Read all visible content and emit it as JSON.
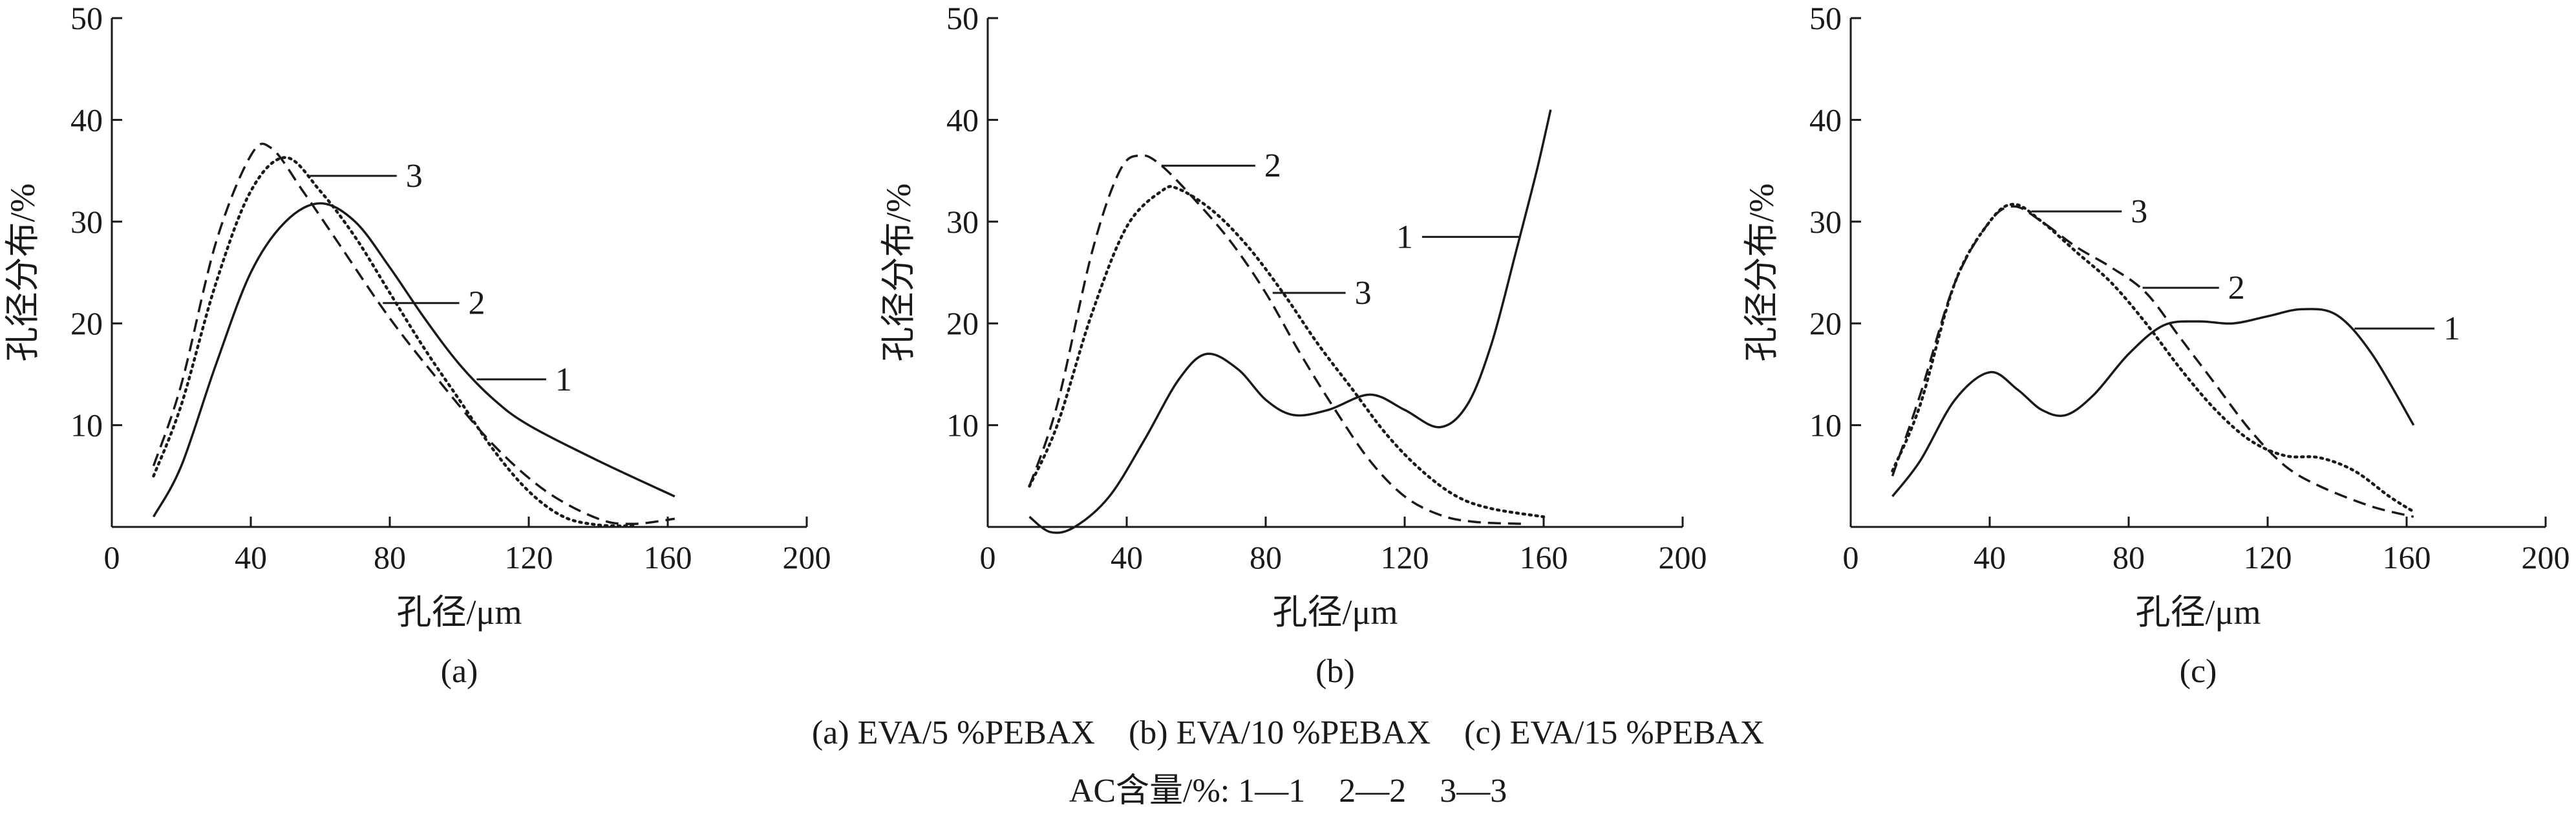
{
  "chart_data": [
    {
      "type": "line",
      "panel_label": "(a)",
      "xlabel": "孔径/μm",
      "ylabel": "孔径分布/%",
      "xlim": [
        0,
        200
      ],
      "ylim": [
        0,
        50
      ],
      "xticks": [
        "0",
        "40",
        "80",
        "120",
        "160",
        "200"
      ],
      "yticks": [
        "10",
        "20",
        "30",
        "40",
        "50"
      ],
      "grid": false,
      "series": [
        {
          "name": "1",
          "style": "solid",
          "points": [
            [
              12,
              1
            ],
            [
              20,
              6
            ],
            [
              30,
              16
            ],
            [
              40,
              25
            ],
            [
              50,
              30
            ],
            [
              60,
              31.8
            ],
            [
              70,
              30
            ],
            [
              80,
              25.5
            ],
            [
              90,
              20.5
            ],
            [
              100,
              16
            ],
            [
              110,
              12.5
            ],
            [
              120,
              10
            ],
            [
              140,
              6.5
            ],
            [
              162,
              3
            ]
          ]
        },
        {
          "name": "2",
          "style": "dashed",
          "points": [
            [
              12,
              6
            ],
            [
              20,
              14
            ],
            [
              30,
              28
            ],
            [
              40,
              36.5
            ],
            [
              46,
              37.2
            ],
            [
              55,
              33
            ],
            [
              65,
              28
            ],
            [
              80,
              20.5
            ],
            [
              95,
              14
            ],
            [
              110,
              8
            ],
            [
              125,
              3.5
            ],
            [
              140,
              0.8
            ],
            [
              150,
              0.3
            ],
            [
              162,
              0.8
            ]
          ]
        },
        {
          "name": "3",
          "style": "dotted",
          "points": [
            [
              12,
              5
            ],
            [
              20,
              12
            ],
            [
              30,
              24
            ],
            [
              40,
              33
            ],
            [
              50,
              36.3
            ],
            [
              60,
              33
            ],
            [
              70,
              28.5
            ],
            [
              80,
              23
            ],
            [
              90,
              17.5
            ],
            [
              100,
              12.5
            ],
            [
              110,
              7.5
            ],
            [
              120,
              3.5
            ],
            [
              130,
              1
            ],
            [
              140,
              0.2
            ],
            [
              150,
              0.1
            ]
          ]
        }
      ],
      "annotations": [
        {
          "text": "1",
          "series": "1",
          "at": [
            105,
            14.5
          ],
          "label_at": [
            125,
            14.5
          ]
        },
        {
          "text": "2",
          "series": "2",
          "at": [
            78,
            22
          ],
          "label_at": [
            100,
            22
          ]
        },
        {
          "text": "3",
          "series": "3",
          "at": [
            57,
            34.5
          ],
          "label_at": [
            82,
            34.5
          ]
        }
      ]
    },
    {
      "type": "line",
      "panel_label": "(b)",
      "xlabel": "孔径/μm",
      "ylabel": "孔径分布/%",
      "xlim": [
        0,
        200
      ],
      "ylim": [
        0,
        50
      ],
      "xticks": [
        "0",
        "40",
        "80",
        "120",
        "160",
        "200"
      ],
      "yticks": [
        "10",
        "20",
        "30",
        "40",
        "50"
      ],
      "grid": false,
      "series": [
        {
          "name": "1",
          "style": "solid",
          "points": [
            [
              12,
              1
            ],
            [
              18,
              -0.5
            ],
            [
              25,
              0
            ],
            [
              35,
              3
            ],
            [
              45,
              8.5
            ],
            [
              55,
              14.5
            ],
            [
              63,
              17
            ],
            [
              72,
              15.5
            ],
            [
              80,
              12.5
            ],
            [
              88,
              11
            ],
            [
              98,
              11.5
            ],
            [
              110,
              13
            ],
            [
              120,
              11.5
            ],
            [
              130,
              9.8
            ],
            [
              138,
              12
            ],
            [
              145,
              18
            ],
            [
              152,
              27
            ],
            [
              158,
              35
            ],
            [
              162,
              41
            ]
          ]
        },
        {
          "name": "2",
          "style": "dashed",
          "points": [
            [
              12,
              4
            ],
            [
              20,
              12
            ],
            [
              30,
              27
            ],
            [
              38,
              35
            ],
            [
              44,
              36.5
            ],
            [
              50,
              35.5
            ],
            [
              60,
              32
            ],
            [
              70,
              28
            ],
            [
              80,
              23
            ],
            [
              90,
              17
            ],
            [
              100,
              11.5
            ],
            [
              110,
              6.5
            ],
            [
              120,
              3
            ],
            [
              130,
              1.2
            ],
            [
              140,
              0.5
            ],
            [
              155,
              0.3
            ]
          ]
        },
        {
          "name": "3",
          "style": "dotted",
          "points": [
            [
              12,
              4
            ],
            [
              20,
              10
            ],
            [
              30,
              21
            ],
            [
              40,
              29.5
            ],
            [
              50,
              33
            ],
            [
              55,
              33.2
            ],
            [
              65,
              31
            ],
            [
              75,
              27.5
            ],
            [
              85,
              23
            ],
            [
              95,
              18
            ],
            [
              105,
              13.5
            ],
            [
              115,
              9
            ],
            [
              125,
              5.5
            ],
            [
              135,
              3
            ],
            [
              145,
              1.8
            ],
            [
              160,
              1
            ]
          ]
        }
      ],
      "annotations": [
        {
          "text": "1",
          "series": "1",
          "at": [
            153,
            28.5
          ],
          "label_at": [
            125,
            28.5
          ]
        },
        {
          "text": "2",
          "series": "2",
          "at": [
            50,
            35.5
          ],
          "label_at": [
            77,
            35.5
          ]
        },
        {
          "text": "3",
          "series": "3",
          "at": [
            82,
            23
          ],
          "label_at": [
            103,
            23
          ]
        }
      ]
    },
    {
      "type": "line",
      "panel_label": "(c)",
      "xlabel": "孔径/μm",
      "ylabel": "孔径分布/%",
      "xlim": [
        0,
        200
      ],
      "ylim": [
        0,
        50
      ],
      "xticks": [
        "0",
        "40",
        "80",
        "120",
        "160",
        "200"
      ],
      "yticks": [
        "10",
        "20",
        "30",
        "40",
        "50"
      ],
      "grid": false,
      "series": [
        {
          "name": "1",
          "style": "solid",
          "points": [
            [
              12,
              3
            ],
            [
              20,
              6.5
            ],
            [
              30,
              12.5
            ],
            [
              40,
              15.2
            ],
            [
              48,
              13.5
            ],
            [
              55,
              11.5
            ],
            [
              62,
              11
            ],
            [
              70,
              13
            ],
            [
              80,
              17
            ],
            [
              90,
              19.8
            ],
            [
              100,
              20.2
            ],
            [
              110,
              20
            ],
            [
              120,
              20.7
            ],
            [
              130,
              21.4
            ],
            [
              140,
              20.8
            ],
            [
              150,
              17
            ],
            [
              162,
              10
            ]
          ]
        },
        {
          "name": "2",
          "style": "dashed",
          "points": [
            [
              12,
              5
            ],
            [
              20,
              13
            ],
            [
              30,
              24
            ],
            [
              40,
              30
            ],
            [
              47,
              31.5
            ],
            [
              55,
              30
            ],
            [
              65,
              27.5
            ],
            [
              75,
              25.5
            ],
            [
              85,
              23
            ],
            [
              95,
              18.5
            ],
            [
              105,
              14
            ],
            [
              115,
              9.5
            ],
            [
              125,
              6
            ],
            [
              135,
              4
            ],
            [
              150,
              2
            ],
            [
              162,
              1
            ]
          ]
        },
        {
          "name": "3",
          "style": "dotted",
          "points": [
            [
              12,
              5.5
            ],
            [
              20,
              12
            ],
            [
              30,
              24
            ],
            [
              40,
              30
            ],
            [
              47,
              31.7
            ],
            [
              55,
              30
            ],
            [
              65,
              27
            ],
            [
              75,
              24
            ],
            [
              85,
              20
            ],
            [
              95,
              15.5
            ],
            [
              105,
              11.5
            ],
            [
              115,
              8.5
            ],
            [
              125,
              7
            ],
            [
              135,
              6.8
            ],
            [
              145,
              5.5
            ],
            [
              155,
              3
            ],
            [
              162,
              1.5
            ]
          ]
        }
      ],
      "annotations": [
        {
          "text": "1",
          "series": "1",
          "at": [
            145,
            19.5
          ],
          "label_at": [
            168,
            19.5
          ]
        },
        {
          "text": "2",
          "series": "2",
          "at": [
            84,
            23.5
          ],
          "label_at": [
            106,
            23.5
          ]
        },
        {
          "text": "3",
          "series": "3",
          "at": [
            52,
            31
          ],
          "label_at": [
            78,
            31
          ]
        }
      ]
    }
  ],
  "caption": {
    "line1": "(a) EVA/5 %PEBAX    (b) EVA/10 %PEBAX    (c) EVA/15 %PEBAX",
    "line2": "AC含量/%: 1—1    2—2    3—3"
  }
}
